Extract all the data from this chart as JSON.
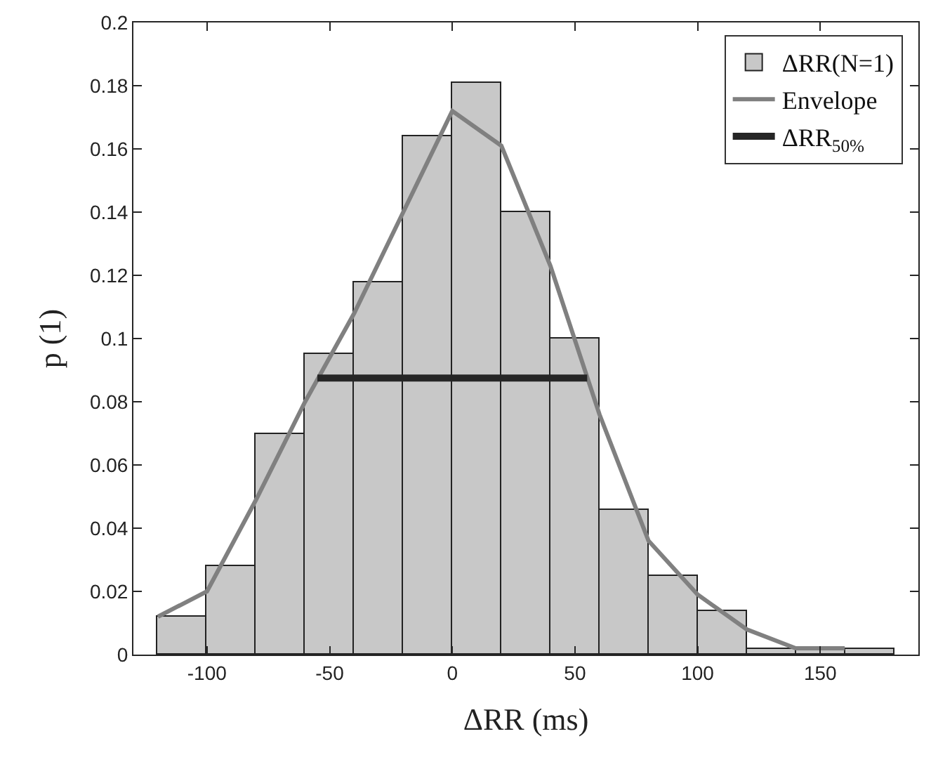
{
  "chart_data": {
    "type": "histogram",
    "xlabel": "ΔRR (ms)",
    "ylabel": "p (1)",
    "bins": [
      -120,
      -100,
      -80,
      -60,
      -40,
      -20,
      0,
      20,
      40,
      60,
      80,
      100,
      120,
      140,
      160,
      180
    ],
    "series": [
      {
        "name": "ΔRR(N=1)",
        "color": "#c8c8c8",
        "values": [
          0.012,
          0.028,
          0.07,
          0.095,
          0.118,
          0.164,
          0.181,
          0.14,
          0.1,
          0.046,
          0.025,
          0.014,
          0.002,
          0.002,
          0.002
        ]
      },
      {
        "type": "line",
        "name": "Envelope",
        "color": "#808080",
        "x": [
          -120,
          -100,
          -80,
          -60,
          -40,
          -20,
          0,
          20,
          40,
          60,
          80,
          100,
          120,
          140,
          160
        ],
        "values": [
          0.012,
          0.02,
          0.049,
          0.08,
          0.108,
          0.14,
          0.172,
          0.161,
          0.123,
          0.076,
          0.036,
          0.019,
          0.008,
          0.002,
          0.002
        ]
      },
      {
        "type": "line",
        "name": "ΔRR$_{50%}$",
        "color": "#262626",
        "x": [
          -55,
          55
        ],
        "values": [
          0.0875,
          0.0875
        ]
      }
    ],
    "xlim": [
      -130,
      190
    ],
    "xticks": [
      {
        "value": -100,
        "label": "-100"
      },
      {
        "value": -50,
        "label": "-50"
      },
      0,
      50,
      100,
      150
    ],
    "ylim": [
      0,
      0.2
    ],
    "yticks": [
      0,
      0.02,
      0.04,
      0.06,
      0.08,
      0.1,
      0.12,
      0.14,
      0.16,
      0.18,
      0.2
    ],
    "grid": false,
    "legend": "top right",
    "marker": "none",
    "line_style": "solid"
  }
}
